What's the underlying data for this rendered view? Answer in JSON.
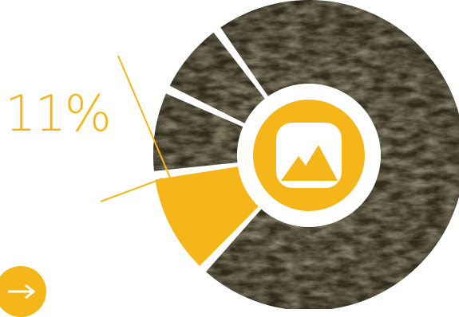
{
  "chart_data": {
    "type": "pie",
    "style": "donut",
    "highlight_label": "11%",
    "slices": [
      {
        "value": 11,
        "highlighted": true
      },
      {
        "value": 9,
        "highlighted": false
      },
      {
        "value": 8,
        "highlighted": false
      },
      {
        "value": 72,
        "highlighted": false
      }
    ],
    "center_icon": "image-icon"
  },
  "colors": {
    "accent": "#F5B619",
    "texture_dark": "#3a3420",
    "texture_light": "#8c8462",
    "background": "#ffffff"
  },
  "controls": {
    "next_icon": "arrow-right-icon"
  }
}
